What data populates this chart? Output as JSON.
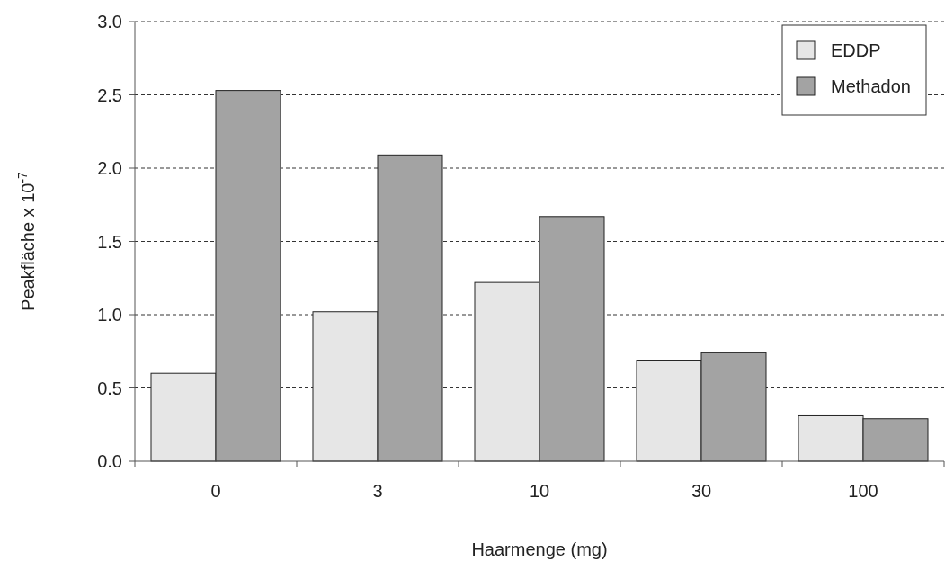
{
  "chart_data": {
    "type": "bar",
    "xlabel": "Haarmenge (mg)",
    "ylabel": "Peakfläche x 10$^{-7}$",
    "categories": [
      "0",
      "3",
      "10",
      "30",
      "100"
    ],
    "series": [
      {
        "name": "EDDP",
        "color": "#e6e6e6",
        "values": [
          0.6,
          1.02,
          1.22,
          0.69,
          0.31
        ]
      },
      {
        "name": "Methadon",
        "color": "#a3a3a3",
        "values": [
          2.53,
          2.09,
          1.67,
          0.74,
          0.29
        ]
      }
    ],
    "ylim": [
      0,
      3
    ],
    "yticks": [
      {
        "value": 0,
        "label": "0.0"
      },
      {
        "value": 0.5,
        "label": "0.5"
      },
      {
        "value": 1,
        "label": "1.0"
      },
      {
        "value": 1.5,
        "label": "1.5"
      },
      {
        "value": 2,
        "label": "2.0"
      },
      {
        "value": 2.5,
        "label": "2.5"
      },
      {
        "value": 3,
        "label": "3.0"
      }
    ],
    "grid": "y",
    "legend": "top right"
  }
}
